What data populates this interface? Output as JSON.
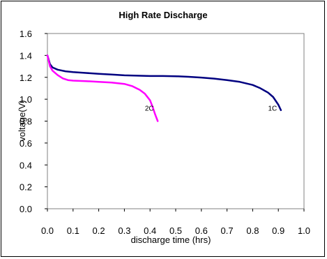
{
  "chart_data": {
    "type": "line",
    "title": "High Rate Discharge",
    "xlabel": "discharge time (hrs)",
    "ylabel": "voltage(V)",
    "xlim": [
      0.0,
      1.0
    ],
    "ylim": [
      0.0,
      1.6
    ],
    "x_ticks": [
      "0.0",
      "0.1",
      "0.2",
      "0.3",
      "0.4",
      "0.5",
      "0.6",
      "0.7",
      "0.8",
      "0.9",
      "1.0"
    ],
    "y_ticks": [
      "0.0",
      "0.2",
      "0.4",
      "0.6",
      "0.8",
      "1.0",
      "1.2",
      "1.4",
      "1.6"
    ],
    "grid": false,
    "legend": "none",
    "series": [
      {
        "name": "1C",
        "color": "#000080",
        "x": [
          0.0,
          0.01,
          0.02,
          0.04,
          0.07,
          0.1,
          0.15,
          0.2,
          0.25,
          0.3,
          0.35,
          0.4,
          0.45,
          0.5,
          0.55,
          0.6,
          0.65,
          0.7,
          0.75,
          0.8,
          0.83,
          0.86,
          0.88,
          0.9,
          0.91
        ],
        "y": [
          1.4,
          1.32,
          1.29,
          1.27,
          1.255,
          1.248,
          1.24,
          1.232,
          1.225,
          1.218,
          1.215,
          1.212,
          1.212,
          1.21,
          1.205,
          1.198,
          1.188,
          1.175,
          1.158,
          1.13,
          1.1,
          1.06,
          1.02,
          0.95,
          0.9
        ]
      },
      {
        "name": "2C",
        "color": "#ff00ff",
        "x": [
          0.0,
          0.01,
          0.02,
          0.04,
          0.06,
          0.08,
          0.1,
          0.15,
          0.2,
          0.25,
          0.3,
          0.33,
          0.36,
          0.38,
          0.4,
          0.41,
          0.42,
          0.43
        ],
        "y": [
          1.4,
          1.3,
          1.26,
          1.22,
          1.19,
          1.175,
          1.17,
          1.165,
          1.158,
          1.152,
          1.14,
          1.12,
          1.085,
          1.05,
          0.99,
          0.93,
          0.86,
          0.8
        ]
      }
    ],
    "annotations": [
      {
        "text": "2C",
        "x": 0.38,
        "y": 0.92
      },
      {
        "text": "1C",
        "x": 0.86,
        "y": 0.92
      }
    ]
  }
}
